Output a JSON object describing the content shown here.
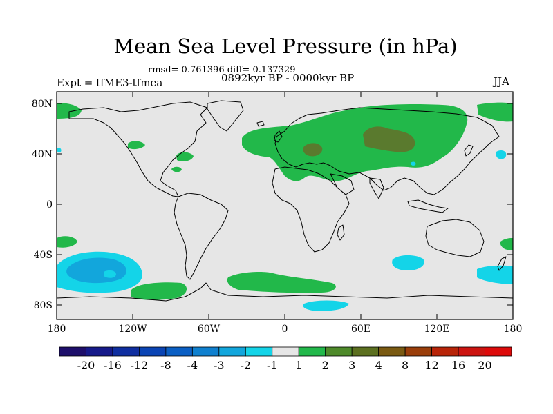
{
  "title": "Mean Sea Level Pressure (in hPa)",
  "stats": "rmsd= 0.761396 diff= 0.137329",
  "experiment": "Expt = tfME3-tfmea",
  "period": "0892kyr BP - 0000kyr BP",
  "season": "JJA",
  "map": {
    "lat_ticks": [
      "80N",
      "40N",
      "0",
      "40S",
      "80S"
    ],
    "lon_ticks": [
      "180",
      "120W",
      "60W",
      "0",
      "60E",
      "120E",
      "180"
    ]
  },
  "colorbar": {
    "labels": [
      "-20",
      "-16",
      "-12",
      "-8",
      "-4",
      "-3",
      "-2",
      "-1",
      "1",
      "2",
      "3",
      "4",
      "8",
      "12",
      "16",
      "20"
    ],
    "colors": [
      "#1e0f6b",
      "#161a8a",
      "#0f2ea0",
      "#0a44b4",
      "#0b5fc4",
      "#0f80cf",
      "#12a6dc",
      "#14d4e8",
      "#e6e6e6",
      "#22b84a",
      "#4e8a2a",
      "#5c7020",
      "#7a5a12",
      "#9a3e0a",
      "#b82408",
      "#cc1410",
      "#dd0a0a"
    ]
  },
  "colors": {
    "land_positive": "#22b84a",
    "positive_strong": "#5a7a2e",
    "negative_light": "#14d4e8",
    "negative_mid": "#12a6dc",
    "background": "#e6e6e6"
  }
}
